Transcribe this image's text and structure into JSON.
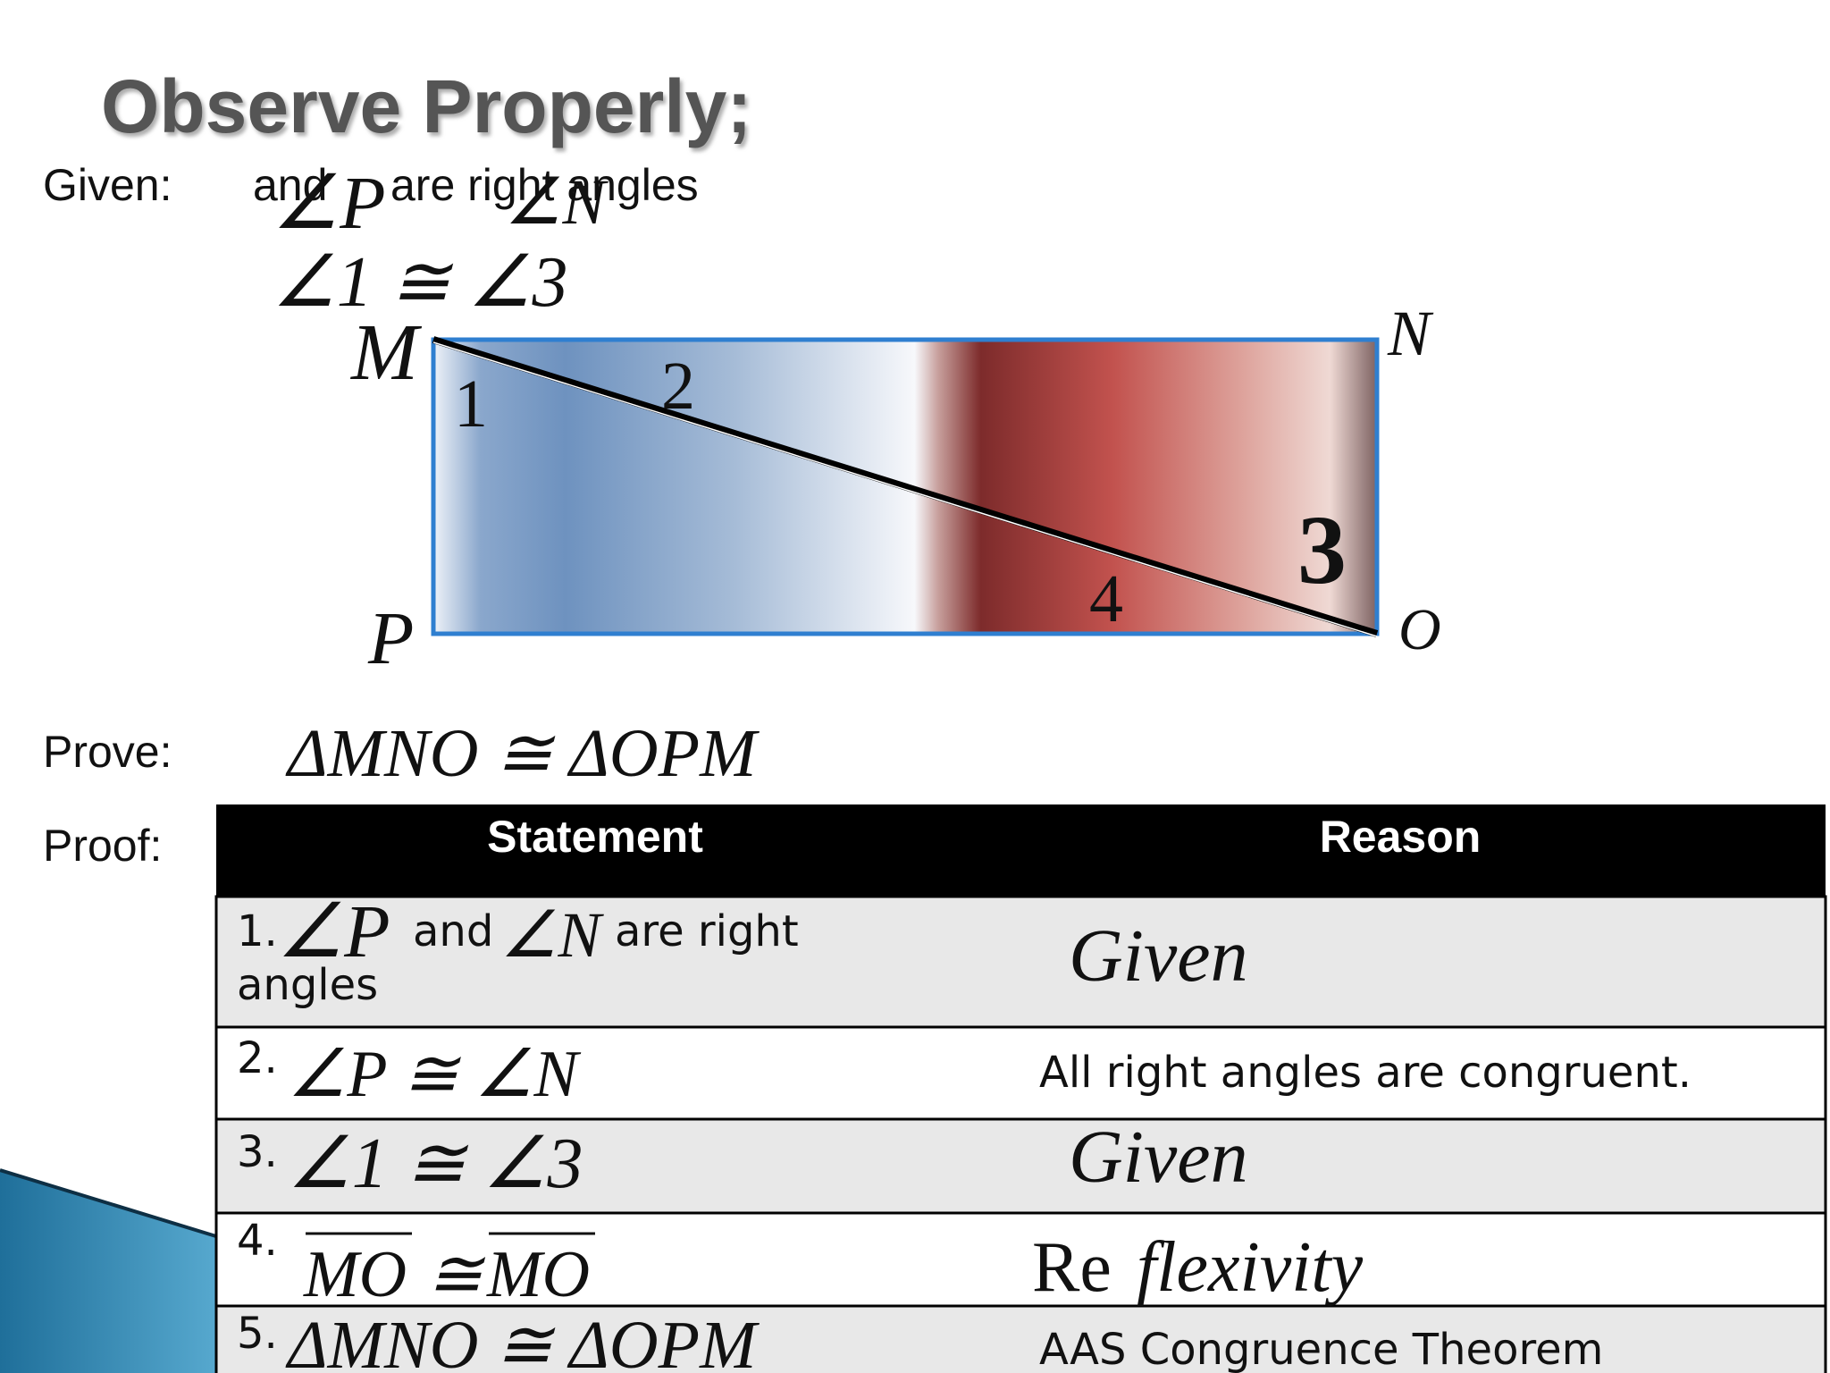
{
  "title": "Observe Properly;",
  "given": {
    "label": "Given:",
    "and": "and",
    "angle_p": "∠P",
    "angle_n": "∠N",
    "rest": "are right angles",
    "second": "∠1 ≅ ∠3"
  },
  "figure": {
    "vertices": [
      "M",
      "N",
      "P",
      "O"
    ],
    "angles": [
      "1",
      "2",
      "3",
      "4"
    ]
  },
  "prove": {
    "label": "Prove:",
    "statement": "ΔMNO ≅ ΔOPM"
  },
  "proof": {
    "label": "Proof:",
    "table": {
      "headers": [
        "Statement",
        "Reason"
      ],
      "rows": [
        {
          "number": "1.",
          "statement": [
            "∠P",
            "and",
            "∠N",
            "are right",
            "angles"
          ],
          "reason": [
            "Given"
          ]
        },
        {
          "number": "2.",
          "statement": [
            "∠P ≅ ∠N"
          ],
          "reason": [
            "All right angles are congruent."
          ]
        },
        {
          "number": "3.",
          "statement": [
            "∠1 ≅ ∠3"
          ],
          "reason": [
            "Given"
          ]
        },
        {
          "number": "4.",
          "statement": [
            "MO",
            "≅",
            "MO"
          ],
          "reason": [
            "Re",
            "flexivity"
          ]
        },
        {
          "number": "5.",
          "statement": [
            "ΔMNO ≅ ΔOPM"
          ],
          "reason": [
            "AAS Congruence Theorem"
          ]
        }
      ]
    }
  }
}
